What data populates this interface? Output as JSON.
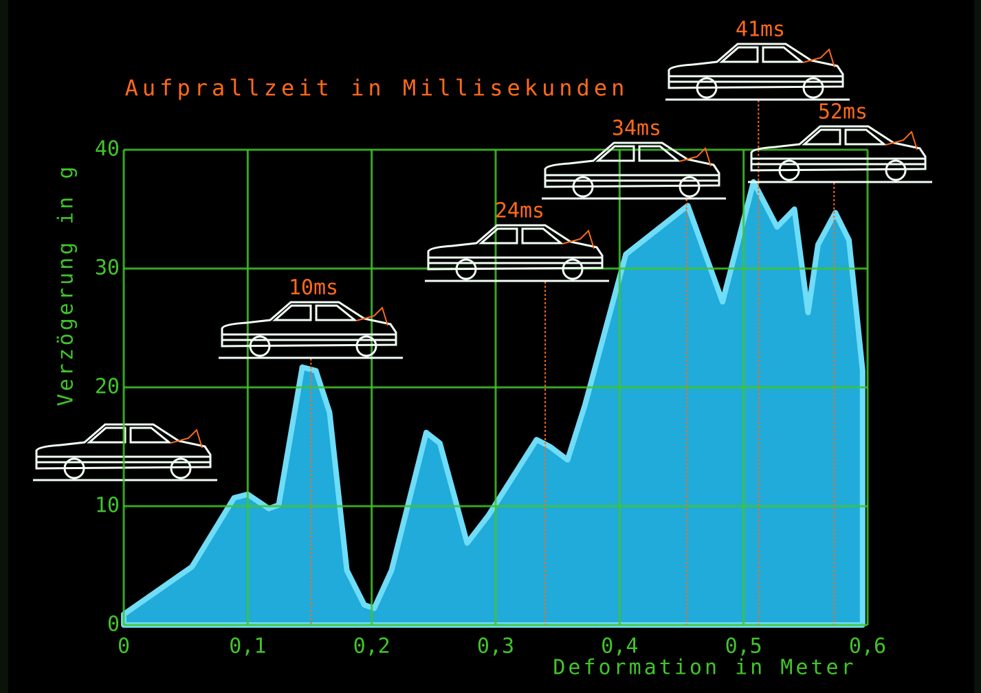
{
  "chart_data": {
    "type": "area",
    "title": "Aufprallzeit in Millisekunden",
    "x_label": "Deformation in Meter",
    "y_label": "Verzögerung in g",
    "x": [
      0,
      0.055,
      0.089,
      0.1,
      0.117,
      0.125,
      0.144,
      0.155,
      0.166,
      0.18,
      0.194,
      0.202,
      0.216,
      0.244,
      0.255,
      0.277,
      0.294,
      0.333,
      0.344,
      0.358,
      0.372,
      0.405,
      0.455,
      0.483,
      0.508,
      0.527,
      0.541,
      0.552,
      0.56,
      0.574,
      0.585,
      0.596
    ],
    "series": [
      {
        "color": "#22b4e6",
        "values": [
          0.9,
          4.9,
          10.7,
          11,
          9.8,
          10.1,
          21.7,
          21.4,
          17.9,
          4.6,
          1.7,
          1.4,
          4.6,
          16.2,
          15.3,
          6.9,
          9.2,
          15.6,
          15,
          13.9,
          18.5,
          31.2,
          35.3,
          27.2,
          37.3,
          33.5,
          35,
          26.3,
          32,
          34.7,
          32.4,
          21.4
        ]
      }
    ],
    "xlim": [
      0,
      0.6
    ],
    "ylim": [
      0,
      40
    ],
    "xticks": [
      0,
      {
        "value": 0.1,
        "label": "0,1"
      },
      {
        "value": 0.2,
        "label": "0,2"
      },
      {
        "value": 0.3,
        "label": "0,3"
      },
      {
        "value": 0.4,
        "label": "0,4"
      },
      {
        "value": 0.5,
        "label": "0,5"
      },
      {
        "value": 0.6,
        "label": "0,6"
      }
    ],
    "yticks": [
      0,
      10,
      20,
      30,
      40
    ],
    "grid": true,
    "annotations": [
      {
        "label": "10ms",
        "x": 0.151
      },
      {
        "label": "24ms",
        "x": 0.34
      },
      {
        "label": "34ms",
        "x": 0.454
      },
      {
        "label": "41ms",
        "x": 0.512
      },
      {
        "label": "52ms",
        "x": 0.573
      }
    ]
  }
}
